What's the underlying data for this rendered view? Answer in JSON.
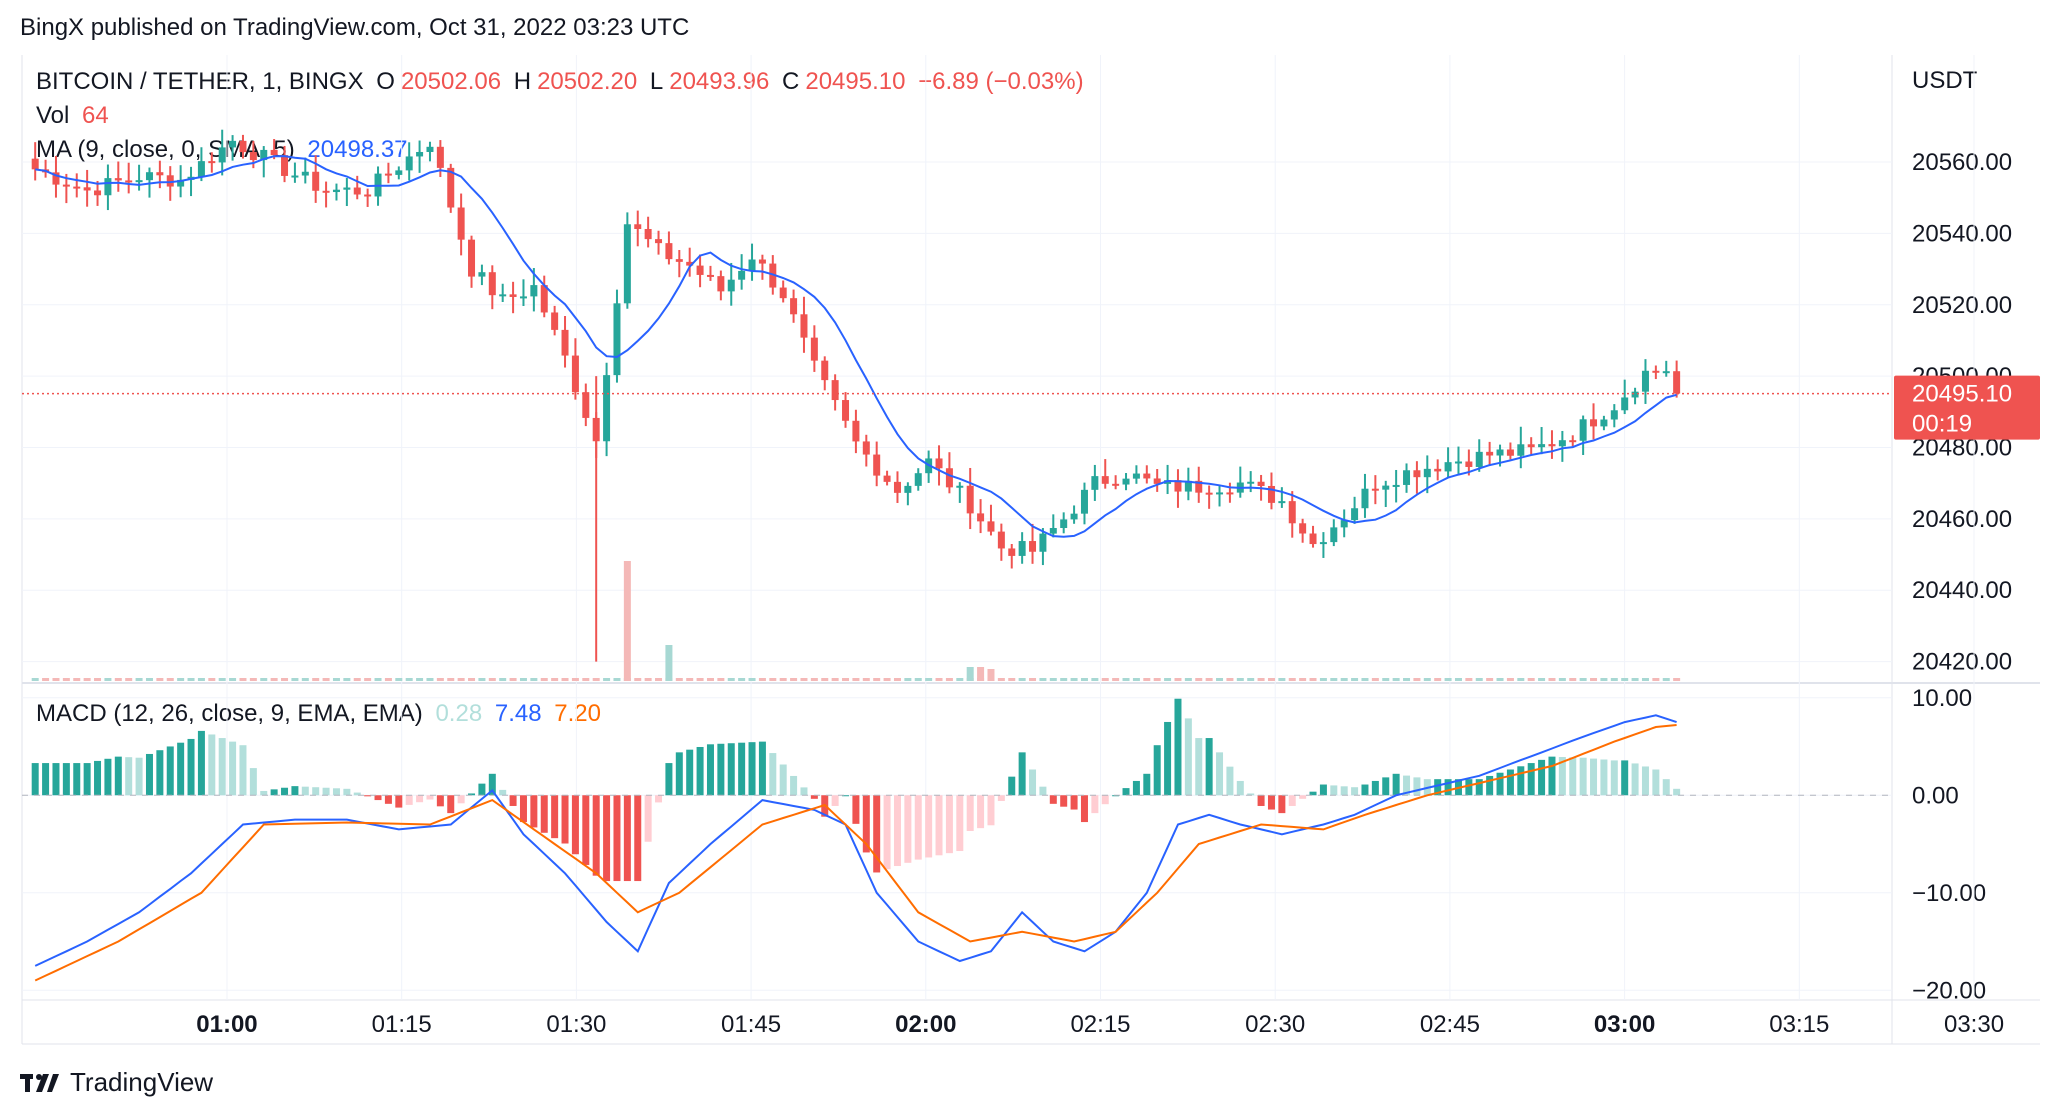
{
  "header": {
    "published": "BingX published on TradingView.com, Oct 31, 2022 03:23 UTC"
  },
  "footer": {
    "brand": "TradingView"
  },
  "legend": {
    "symbol": "BITCOIN / TETHER, 1, BINGX",
    "o_label": "O",
    "o": "20502.06",
    "h_label": "H",
    "h": "20502.20",
    "l_label": "L",
    "l": "20493.96",
    "c_label": "C",
    "c": "20495.10",
    "change": "−6.89 (−0.03%)",
    "vol_label": "Vol",
    "vol": "64",
    "ma_label": "MA (9, close, 0, SMA, 5)",
    "ma": "20498.37",
    "macd_label": "MACD (12, 26, close, 9, EMA, EMA)",
    "macd_hist": "0.28",
    "macd_line": "7.48",
    "macd_signal": "7.20"
  },
  "colors": {
    "up": "#26a69a",
    "down": "#ef5350",
    "ma": "#2962ff",
    "signal": "#ff6d00",
    "grid": "#f0f3fa",
    "axis_text": "#131722",
    "hist_up_strong": "#26a69a",
    "hist_up_weak": "#b2dfdb",
    "hist_down_strong": "#ef5350",
    "hist_down_weak": "#ffcdd2"
  },
  "chart_data": [
    {
      "type": "candlestick",
      "title": "BITCOIN / TETHER, 1, BINGX",
      "y_axis_unit": "USDT",
      "ylim": [
        20414,
        20590
      ],
      "y_ticks": [
        "20420.00",
        "20440.00",
        "20460.00",
        "20480.00",
        "20500.00",
        "20520.00",
        "20540.00",
        "20560.00"
      ],
      "x_ticks": [
        "01:00",
        "01:15",
        "01:30",
        "01:45",
        "02:00",
        "02:15",
        "02:30",
        "02:45",
        "03:00",
        "03:15",
        "03:30"
      ],
      "x_ticks_bold": [
        "01:00",
        "02:00",
        "03:00"
      ],
      "current_price": "20495.10",
      "countdown": "00:19",
      "close_anchors": [
        [
          0,
          20558
        ],
        [
          5,
          20552
        ],
        [
          10,
          20556
        ],
        [
          14,
          20555
        ],
        [
          19,
          20566
        ],
        [
          24,
          20558
        ],
        [
          28,
          20552
        ],
        [
          32,
          20552
        ],
        [
          35,
          20559
        ],
        [
          38,
          20566
        ],
        [
          42,
          20530
        ],
        [
          45,
          20521
        ],
        [
          48,
          20525
        ],
        [
          51,
          20505
        ],
        [
          54,
          20482
        ],
        [
          57,
          20543
        ],
        [
          60,
          20535
        ],
        [
          63,
          20531
        ],
        [
          66,
          20524
        ],
        [
          69,
          20534
        ],
        [
          72,
          20523
        ],
        [
          75,
          20502
        ],
        [
          79,
          20481
        ],
        [
          83,
          20468
        ],
        [
          86,
          20476
        ],
        [
          90,
          20464
        ],
        [
          93,
          20452
        ],
        [
          96,
          20451
        ],
        [
          99,
          20460
        ],
        [
          102,
          20470
        ],
        [
          105,
          20473
        ],
        [
          108,
          20469
        ],
        [
          112,
          20469
        ],
        [
          116,
          20470
        ],
        [
          120,
          20465
        ],
        [
          123,
          20453
        ],
        [
          126,
          20461
        ],
        [
          129,
          20470
        ],
        [
          132,
          20473
        ],
        [
          136,
          20476
        ],
        [
          140,
          20478
        ],
        [
          144,
          20479
        ],
        [
          148,
          20484
        ],
        [
          152,
          20492
        ],
        [
          155,
          20501
        ],
        [
          157,
          20502
        ],
        [
          158,
          20495
        ]
      ],
      "ma_label": "MA (9, close, 0, SMA, 5)",
      "volume": {
        "label": "Vol",
        "spikes": [
          [
            57,
            120,
            "down"
          ],
          [
            61,
            36,
            "up"
          ],
          [
            90,
            14,
            "up"
          ],
          [
            91,
            14,
            "down"
          ],
          [
            92,
            12,
            "down"
          ]
        ]
      }
    },
    {
      "type": "macd",
      "title": "MACD (12, 26, close, 9, EMA, EMA)",
      "ylim": [
        -21,
        11
      ],
      "y_ticks": [
        "10.00",
        "0.00",
        "−10.00",
        "−20.00"
      ],
      "macd_anchors": [
        [
          0,
          -17.5
        ],
        [
          5,
          -15
        ],
        [
          10,
          -12
        ],
        [
          15,
          -8
        ],
        [
          20,
          -3
        ],
        [
          25,
          -2.5
        ],
        [
          30,
          -2.5
        ],
        [
          35,
          -3.5
        ],
        [
          40,
          -3
        ],
        [
          44,
          0.5
        ],
        [
          47,
          -4
        ],
        [
          51,
          -8
        ],
        [
          55,
          -13
        ],
        [
          58,
          -16
        ],
        [
          61,
          -9
        ],
        [
          65,
          -5
        ],
        [
          70,
          -0.5
        ],
        [
          75,
          -1.5
        ],
        [
          78,
          -3
        ],
        [
          81,
          -10
        ],
        [
          85,
          -15
        ],
        [
          89,
          -17
        ],
        [
          92,
          -16
        ],
        [
          95,
          -12
        ],
        [
          98,
          -15
        ],
        [
          101,
          -16
        ],
        [
          104,
          -14
        ],
        [
          107,
          -10
        ],
        [
          110,
          -3
        ],
        [
          113,
          -2
        ],
        [
          116,
          -3
        ],
        [
          120,
          -4
        ],
        [
          124,
          -3
        ],
        [
          127,
          -2
        ],
        [
          131,
          0
        ],
        [
          135,
          1
        ],
        [
          139,
          2
        ],
        [
          144,
          4
        ],
        [
          149,
          6
        ],
        [
          153,
          7.5
        ],
        [
          156,
          8.2
        ],
        [
          158,
          7.5
        ]
      ],
      "signal_anchors": [
        [
          0,
          -19
        ],
        [
          8,
          -15
        ],
        [
          16,
          -10
        ],
        [
          22,
          -3
        ],
        [
          30,
          -2.8
        ],
        [
          38,
          -3
        ],
        [
          44,
          -0.5
        ],
        [
          48,
          -3.5
        ],
        [
          54,
          -8
        ],
        [
          58,
          -12
        ],
        [
          62,
          -10
        ],
        [
          70,
          -3
        ],
        [
          76,
          -1
        ],
        [
          80,
          -5
        ],
        [
          85,
          -12
        ],
        [
          90,
          -15
        ],
        [
          95,
          -14
        ],
        [
          100,
          -15
        ],
        [
          104,
          -14
        ],
        [
          108,
          -10
        ],
        [
          112,
          -5
        ],
        [
          118,
          -3
        ],
        [
          124,
          -3.5
        ],
        [
          128,
          -2
        ],
        [
          134,
          0
        ],
        [
          140,
          1.5
        ],
        [
          146,
          3
        ],
        [
          152,
          5.5
        ],
        [
          156,
          7
        ],
        [
          158,
          7.2
        ]
      ]
    }
  ]
}
